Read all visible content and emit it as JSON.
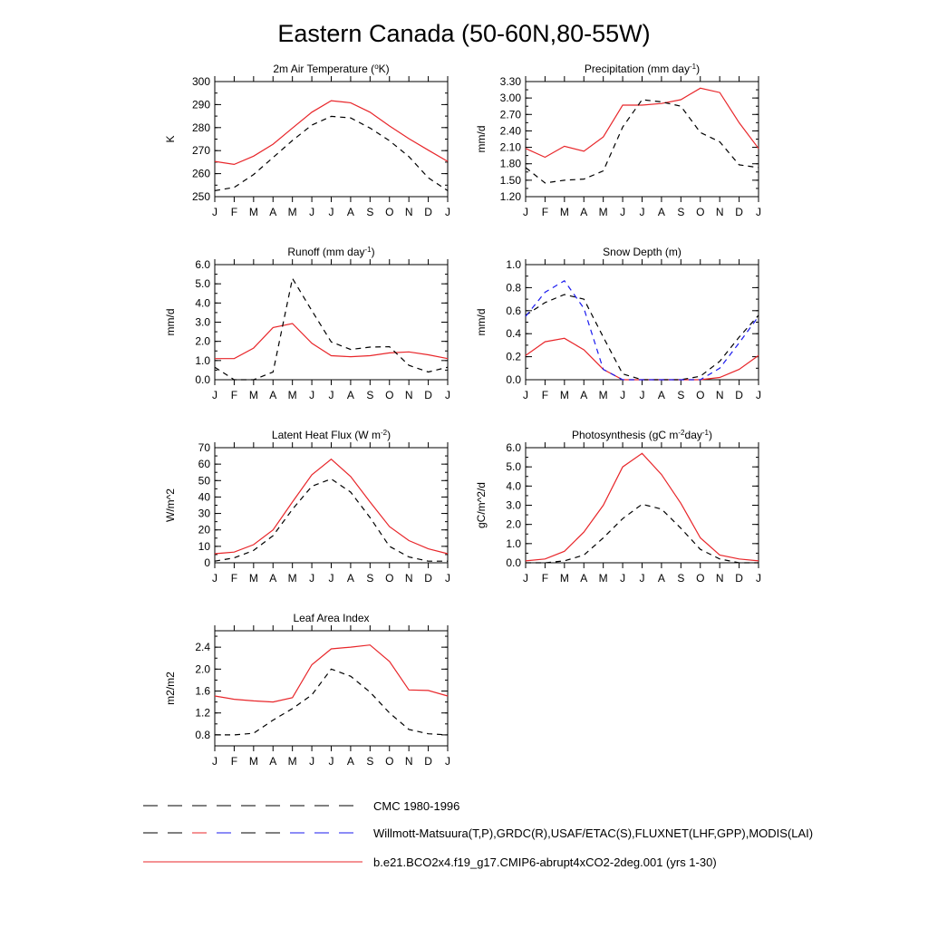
{
  "title": "Eastern Canada (50-60N,80-55W)",
  "colors": {
    "model": "#e8262a",
    "obs_primary": "#000000",
    "obs_alt": "#1a1aee",
    "axis": "#000000"
  },
  "months": [
    "J",
    "F",
    "M",
    "A",
    "M",
    "J",
    "J",
    "A",
    "S",
    "O",
    "N",
    "D",
    "J"
  ],
  "legend": [
    {
      "label": "CMC 1980-1996",
      "style": "dash-black"
    },
    {
      "label": "Willmott-Matsuura(T,P),GRDC(R),USAF/ETAC(S),FLUXNET(LHF,GPP),MODIS(LAI)",
      "style": "dash-red-blue"
    },
    {
      "label": "b.e21.BCO2x4.f19_g17.CMIP6-abrupt4xCO2-2deg.001 (yrs 1-30)",
      "style": "solid-red"
    }
  ],
  "chart_data": [
    {
      "type": "line",
      "title": "2m Air Temperature (°K)",
      "title_parts": [
        "2m Air Temperature (",
        "o",
        "K)"
      ],
      "ylabel": "K",
      "ylim": [
        250,
        300
      ],
      "yticks": [
        "250",
        "260",
        "270",
        "280",
        "290",
        "300"
      ],
      "ytick_values": [
        250,
        260,
        270,
        280,
        290,
        300
      ],
      "series": [
        {
          "name": "model",
          "style": "solid-red",
          "values": [
            265.3,
            264.0,
            267.6,
            272.8,
            279.8,
            286.7,
            291.7,
            290.8,
            286.7,
            280.7,
            275.2,
            270.2,
            265.3
          ]
        },
        {
          "name": "obs",
          "style": "dash-black",
          "values": [
            252.6,
            254.0,
            259.6,
            267.0,
            274.4,
            281.1,
            284.9,
            284.2,
            279.8,
            274.3,
            267.4,
            258.2,
            252.6
          ]
        }
      ]
    },
    {
      "type": "line",
      "title": "Precipitation (mm day-1)",
      "title_parts": [
        "Precipitation (mm day",
        "-1",
        ")"
      ],
      "ylabel": "mm/d",
      "ylim": [
        1.2,
        3.3
      ],
      "yticks": [
        "1.20",
        "1.50",
        "1.80",
        "2.10",
        "2.40",
        "2.70",
        "3.00",
        "3.30"
      ],
      "ytick_values": [
        1.2,
        1.5,
        1.8,
        2.1,
        2.4,
        2.7,
        3.0,
        3.3
      ],
      "series": [
        {
          "name": "model",
          "style": "solid-red",
          "values": [
            2.08,
            1.92,
            2.12,
            2.03,
            2.29,
            2.87,
            2.87,
            2.9,
            2.97,
            3.18,
            3.1,
            2.55,
            2.08
          ]
        },
        {
          "name": "obs",
          "style": "dash-black",
          "values": [
            1.73,
            1.45,
            1.5,
            1.52,
            1.67,
            2.47,
            2.97,
            2.93,
            2.85,
            2.37,
            2.2,
            1.78,
            1.73
          ]
        }
      ]
    },
    {
      "type": "line",
      "title": "Runoff (mm day-1)",
      "title_parts": [
        "Runoff (mm day",
        "-1",
        ")"
      ],
      "ylabel": "mm/d",
      "ylim": [
        0,
        6
      ],
      "yticks": [
        "0.0",
        "1.0",
        "2.0",
        "3.0",
        "4.0",
        "5.0",
        "6.0"
      ],
      "ytick_values": [
        0,
        1,
        2,
        3,
        4,
        5,
        6
      ],
      "series": [
        {
          "name": "model",
          "style": "solid-red",
          "values": [
            1.1,
            1.1,
            1.65,
            2.72,
            2.93,
            1.9,
            1.25,
            1.2,
            1.25,
            1.4,
            1.45,
            1.3,
            1.1
          ]
        },
        {
          "name": "obs",
          "style": "dash-black",
          "values": [
            0.65,
            0.0,
            0.0,
            0.4,
            5.28,
            3.6,
            1.97,
            1.58,
            1.7,
            1.72,
            0.75,
            0.4,
            0.65
          ]
        }
      ]
    },
    {
      "type": "line",
      "title": "Snow Depth (m)",
      "title_parts": [
        "Snow Depth (m)"
      ],
      "ylabel": "mm/d",
      "ylim": [
        0,
        1
      ],
      "yticks": [
        "0.0",
        "0.2",
        "0.4",
        "0.6",
        "0.8",
        "1.0"
      ],
      "ytick_values": [
        0,
        0.2,
        0.4,
        0.6,
        0.8,
        1.0
      ],
      "series": [
        {
          "name": "model",
          "style": "solid-red",
          "values": [
            0.21,
            0.33,
            0.36,
            0.26,
            0.09,
            0.0,
            0.0,
            0.0,
            0.0,
            0.0,
            0.02,
            0.09,
            0.21
          ]
        },
        {
          "name": "obs_cmc",
          "style": "dash-black",
          "values": [
            0.56,
            0.67,
            0.74,
            0.7,
            0.37,
            0.05,
            0.0,
            0.0,
            0.0,
            0.03,
            0.16,
            0.37,
            0.56
          ]
        },
        {
          "name": "obs_usaf",
          "style": "dash-blue",
          "values": [
            0.55,
            0.76,
            0.86,
            0.62,
            0.09,
            0.0,
            0.0,
            0.0,
            0.0,
            0.0,
            0.1,
            0.32,
            0.55
          ]
        }
      ]
    },
    {
      "type": "line",
      "title": "Latent Heat Flux (W m-2)",
      "title_parts": [
        "Latent Heat Flux (W m",
        "-2",
        ")"
      ],
      "ylabel": "W/m^2",
      "ylim": [
        0,
        70
      ],
      "yticks": [
        "0",
        "10",
        "20",
        "30",
        "40",
        "50",
        "60",
        "70"
      ],
      "ytick_values": [
        0,
        10,
        20,
        30,
        40,
        50,
        60,
        70
      ],
      "series": [
        {
          "name": "model",
          "style": "solid-red",
          "values": [
            5.5,
            6.5,
            11.0,
            20.0,
            37.0,
            53.5,
            63.0,
            52.5,
            37.0,
            22.0,
            13.5,
            8.5,
            5.5
          ]
        },
        {
          "name": "obs",
          "style": "dash-black",
          "values": [
            1.0,
            3.0,
            7.5,
            16.5,
            32.5,
            46.5,
            51.0,
            43.0,
            27.5,
            10.0,
            3.5,
            1.0,
            1.0
          ]
        }
      ]
    },
    {
      "type": "line",
      "title": "Photosynthesis (gC m-2day-1)",
      "title_parts": [
        "Photosynthesis (gC m",
        "-2",
        "day",
        "-1",
        ")"
      ],
      "ylabel": "gC/m^2/d",
      "ylim": [
        0,
        6
      ],
      "yticks": [
        "0.0",
        "1.0",
        "2.0",
        "3.0",
        "4.0",
        "5.0",
        "6.0"
      ],
      "ytick_values": [
        0,
        1,
        2,
        3,
        4,
        5,
        6
      ],
      "series": [
        {
          "name": "model",
          "style": "solid-red",
          "values": [
            0.1,
            0.2,
            0.6,
            1.6,
            3.0,
            5.0,
            5.7,
            4.6,
            3.1,
            1.3,
            0.4,
            0.2,
            0.1
          ]
        },
        {
          "name": "obs",
          "style": "dash-black",
          "values": [
            0.0,
            0.0,
            0.1,
            0.4,
            1.3,
            2.3,
            3.05,
            2.8,
            1.8,
            0.7,
            0.2,
            0.0,
            0.0
          ]
        }
      ]
    },
    {
      "type": "line",
      "title": "Leaf Area Index",
      "title_parts": [
        "Leaf Area Index"
      ],
      "ylabel": "m2/m2",
      "ylim": [
        0.6,
        2.7
      ],
      "yticks": [
        "0.8",
        "1.2",
        "1.6",
        "2.0",
        "2.4"
      ],
      "ytick_values": [
        0.8,
        1.2,
        1.6,
        2.0,
        2.4
      ],
      "series": [
        {
          "name": "model",
          "style": "solid-red",
          "values": [
            1.51,
            1.45,
            1.42,
            1.4,
            1.48,
            2.08,
            2.37,
            2.4,
            2.44,
            2.14,
            1.62,
            1.61,
            1.51
          ]
        },
        {
          "name": "obs",
          "style": "dash-black",
          "values": [
            0.8,
            0.8,
            0.83,
            1.07,
            1.28,
            1.53,
            2.0,
            1.87,
            1.58,
            1.2,
            0.9,
            0.82,
            0.8
          ]
        }
      ]
    }
  ]
}
